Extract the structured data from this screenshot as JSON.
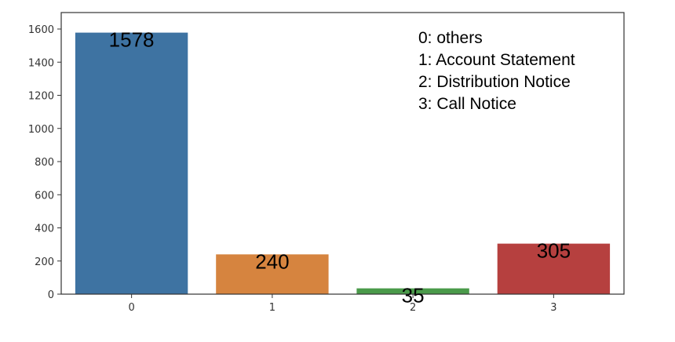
{
  "chart_data": {
    "type": "bar",
    "categories": [
      "0",
      "1",
      "2",
      "3"
    ],
    "values": [
      1578,
      240,
      35,
      305
    ],
    "data_labels": [
      "1578",
      "240",
      "35",
      "305"
    ],
    "colors": [
      "#3e73a2",
      "#d6843f",
      "#4a9a4a",
      "#b6403f"
    ],
    "title": "",
    "xlabel": "",
    "ylabel": "",
    "ylim": [
      0,
      1600
    ],
    "yticks": [
      0,
      200,
      400,
      600,
      800,
      1000,
      1200,
      1400,
      1600
    ],
    "grid": false,
    "legend_position": "top-right",
    "legend_lines": [
      "0: others",
      "1: Account Statement",
      "2: Distribution Notice",
      "3: Call Notice"
    ]
  }
}
